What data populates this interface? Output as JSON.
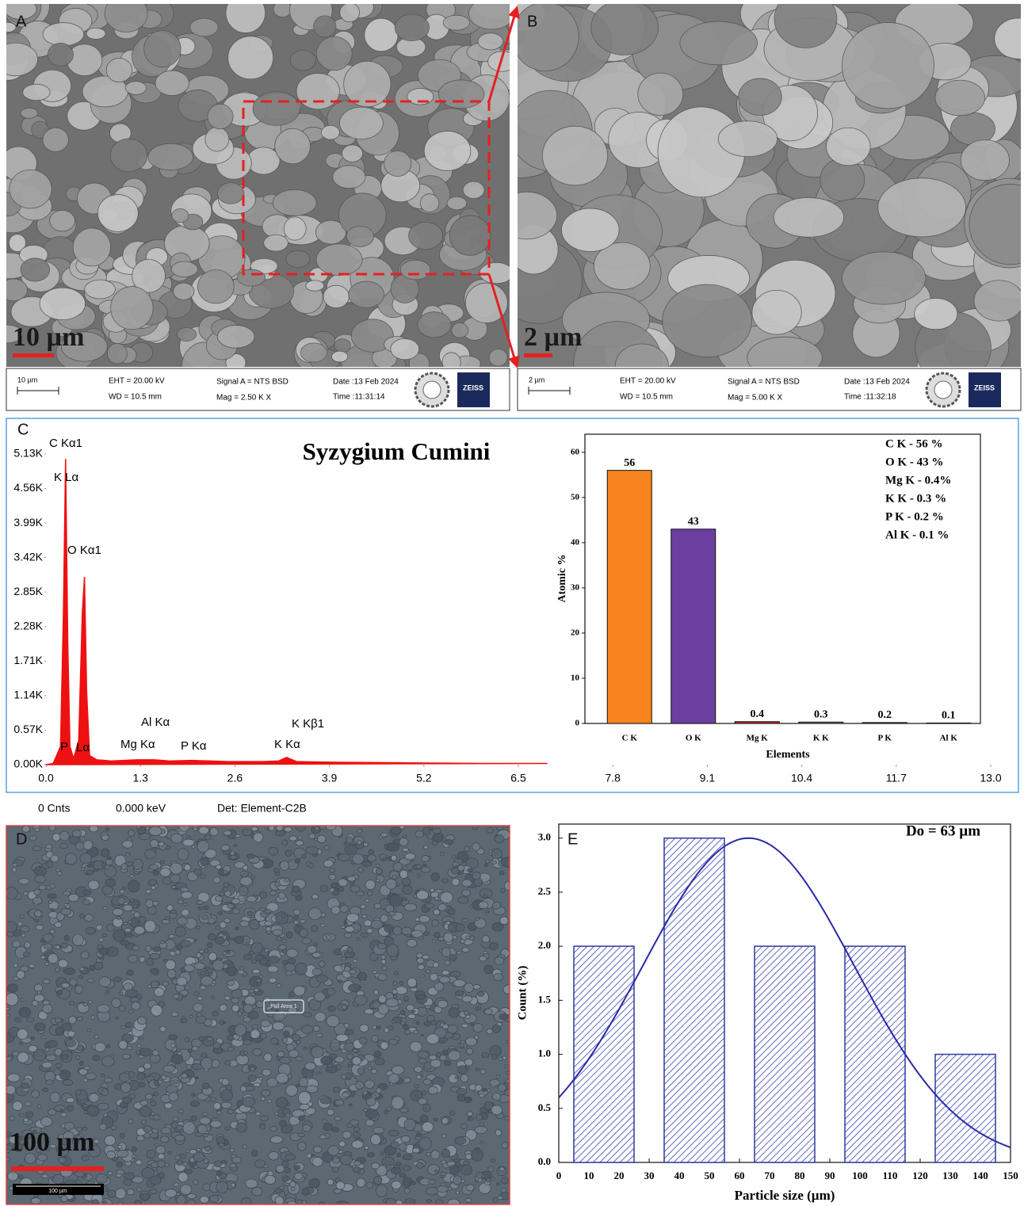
{
  "panels": {
    "A": {
      "label": "A",
      "scale_text": "10 µm",
      "info": {
        "scale": "10 µm",
        "eht": "EHT = 20.00 kV",
        "wd": "WD = 10.5 mm",
        "signal": "Signal A = NTS BSD",
        "mag": "Mag =   2.50 K X",
        "date": "Date :13 Feb 2024",
        "time": "Time :11:31:14",
        "brand": "ZEISS"
      }
    },
    "B": {
      "label": "B",
      "scale_text": "2 µm",
      "info": {
        "scale": "2 µm",
        "eht": "EHT = 20.00 kV",
        "wd": "WD = 10.5 mm",
        "signal": "Signal A = NTS BSD",
        "mag": "Mag =   5.00 K X",
        "date": "Date :13 Feb 2024",
        "time": "Time :11:32:18",
        "brand": "ZEISS"
      }
    },
    "C": {
      "label": "C",
      "footer": [
        "0 Cnts",
        "0.000 keV",
        "Det: Element-C2B"
      ]
    },
    "D": {
      "label": "D",
      "scale_text": "100 µm",
      "bar_text": "100 µm",
      "area_label": "Full Area 1"
    },
    "E": {
      "label": "E"
    }
  },
  "chart_data": [
    {
      "type": "area",
      "title": "Syzygium Cumini",
      "color": "#ee1111",
      "x": [
        0.0,
        0.1,
        0.2,
        0.24,
        0.27,
        0.3,
        0.33,
        0.38,
        0.45,
        0.5,
        0.53,
        0.56,
        0.6,
        0.7,
        0.9,
        1.25,
        1.49,
        1.7,
        2.01,
        2.5,
        3.0,
        3.2,
        3.31,
        3.45,
        4.0,
        5.0,
        6.0,
        6.9
      ],
      "values": [
        0,
        0.02,
        0.3,
        2.5,
        5.05,
        2.0,
        0.3,
        0.1,
        0.4,
        2.5,
        3.1,
        1.2,
        0.15,
        0.08,
        0.06,
        0.08,
        0.08,
        0.06,
        0.07,
        0.05,
        0.05,
        0.06,
        0.12,
        0.05,
        0.04,
        0.03,
        0.02,
        0.02
      ],
      "xlim": [
        0,
        13
      ],
      "xticks": [
        {
          "value": 0,
          "label": "0.0"
        },
        1.3,
        2.6,
        3.9,
        5.2,
        6.5,
        7.8,
        9.1,
        10.4,
        11.7,
        {
          "value": 13,
          "label": "13.0"
        }
      ],
      "ylim": [
        0,
        5.6
      ],
      "yticks": [
        {
          "value": 0,
          "label": "0.00K"
        },
        {
          "value": 0.57,
          "label": "0.57K"
        },
        {
          "value": 1.14,
          "label": "1.14K"
        },
        {
          "value": 1.71,
          "label": "1.71K"
        },
        {
          "value": 2.28,
          "label": "2.28K"
        },
        {
          "value": 2.85,
          "label": "2.85K"
        },
        {
          "value": 3.42,
          "label": "3.42K"
        },
        {
          "value": 3.99,
          "label": "3.99K"
        },
        {
          "value": 4.56,
          "label": "4.56K"
        },
        {
          "value": 5.13,
          "label": "5.13K"
        }
      ],
      "annotations": [
        "C  Kα1",
        "K  Lα",
        "O  Kα1",
        "Al Kα",
        "Mg Kα",
        "P  Kα",
        "K  Kα",
        "K  Kβ1",
        "P",
        "Lα"
      ]
    },
    {
      "type": "bar",
      "categories": [
        "C K",
        "O K",
        "Mg K",
        "K K",
        "P K",
        "Al K"
      ],
      "values": [
        56,
        43,
        0.4,
        0.3,
        0.2,
        0.1
      ],
      "colors": [
        "#f7841e",
        "#6b3fa0",
        "#d9262c",
        "#8a8a8a",
        "#8a8a8a",
        "#8a8a8a"
      ],
      "ylim": [
        0,
        64
      ],
      "yticks": [
        0,
        10,
        20,
        30,
        40,
        50,
        60
      ],
      "xlabel": "Elements",
      "ylabel": "Atomic %",
      "annotations": [
        "C K - 56 %",
        "O K - 43 %",
        "Mg K - 0.4%",
        "K K - 0.3 %",
        "P K - 0.2 %",
        "Al K - 0.1 %"
      ]
    },
    {
      "type": "histogram",
      "x": [
        15,
        45,
        75,
        105,
        135
      ],
      "values": [
        2,
        3,
        2,
        2,
        1
      ],
      "bar_width": 20,
      "color": "#2f3a9e",
      "xlim": [
        0,
        150
      ],
      "xticks": [
        0,
        10,
        20,
        30,
        40,
        50,
        60,
        70,
        80,
        90,
        100,
        110,
        120,
        130,
        140,
        150
      ],
      "ylim": [
        0,
        3.13
      ],
      "yticks": [
        {
          "value": 0,
          "label": "0.0"
        },
        0.5,
        {
          "value": 1,
          "label": "1.0"
        },
        1.5,
        {
          "value": 2,
          "label": "2.0"
        },
        2.5,
        {
          "value": 3,
          "label": "3.0"
        }
      ],
      "xlabel": "Particle size (µm)",
      "ylabel": "Count (%)",
      "annotation": "Do = 63 µm",
      "fit": {
        "mean": 63,
        "sigma": 35.1,
        "peak": 3,
        "color": "#2a2aa8"
      }
    }
  ]
}
